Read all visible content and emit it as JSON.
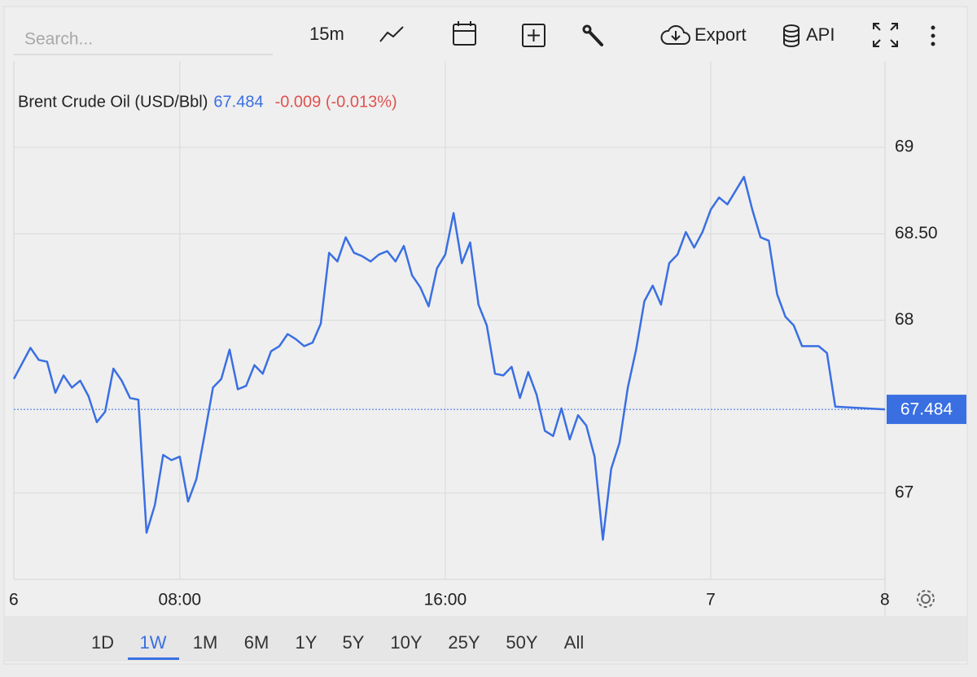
{
  "toolbar": {
    "search_placeholder": "Search...",
    "interval": "15m",
    "export": "Export",
    "api": "API"
  },
  "range_buttons": [
    "1D",
    "1W",
    "1M",
    "6M",
    "1Y",
    "5Y",
    "10Y",
    "25Y",
    "50Y",
    "All"
  ],
  "chart_data": {
    "type": "line",
    "title": "Brent Crude Oil (USD/Bbl)",
    "last_value": 67.484,
    "change": "-0.009 (-0.013%)",
    "x": [
      0,
      1,
      2,
      3,
      4,
      5,
      6,
      7,
      8,
      9,
      10,
      11,
      12,
      13,
      14,
      15,
      16,
      17,
      18,
      19,
      20,
      21,
      22,
      23,
      24,
      25,
      26,
      27,
      28,
      29,
      30,
      31,
      32,
      33,
      34,
      35,
      36,
      37,
      38,
      39,
      40,
      41,
      42,
      43,
      44,
      45,
      46,
      47,
      48,
      49,
      50,
      51,
      52,
      53,
      54,
      55,
      56,
      57,
      58,
      59,
      60,
      61,
      62,
      63,
      64,
      65,
      66,
      67,
      68,
      69,
      70,
      71,
      72,
      73,
      74,
      75,
      76,
      77,
      78,
      79,
      80,
      81,
      82,
      83,
      84,
      85,
      86,
      87,
      88,
      89,
      90,
      91,
      92,
      93,
      94,
      95,
      96,
      97,
      98,
      99,
      105
    ],
    "series": [
      {
        "name": "Brent Crude Oil (USD/Bbl)",
        "color": "#3a6fe2",
        "values": [
          67.66,
          67.75,
          67.84,
          67.77,
          67.76,
          67.58,
          67.68,
          67.61,
          67.65,
          67.56,
          67.41,
          67.47,
          67.72,
          67.65,
          67.55,
          67.54,
          66.77,
          66.93,
          67.22,
          67.19,
          67.21,
          66.95,
          67.08,
          67.34,
          67.61,
          67.66,
          67.83,
          67.6,
          67.62,
          67.74,
          67.69,
          67.82,
          67.85,
          67.92,
          67.89,
          67.85,
          67.87,
          67.98,
          68.39,
          68.34,
          68.48,
          68.39,
          68.37,
          68.34,
          68.38,
          68.4,
          68.34,
          68.43,
          68.26,
          68.19,
          68.08,
          68.3,
          68.38,
          68.62,
          68.33,
          68.45,
          68.09,
          67.97,
          67.69,
          67.68,
          67.73,
          67.55,
          67.7,
          67.57,
          67.36,
          67.33,
          67.49,
          67.31,
          67.45,
          67.39,
          67.21,
          66.73,
          67.14,
          67.29,
          67.61,
          67.83,
          68.11,
          68.2,
          68.09,
          68.33,
          68.38,
          68.51,
          68.42,
          68.51,
          68.64,
          68.71,
          68.67,
          68.75,
          68.83,
          68.64,
          68.48,
          68.46,
          68.15,
          68.02,
          67.97,
          67.85,
          67.85,
          67.85,
          67.81,
          67.5,
          67.484
        ]
      }
    ],
    "xlim": [
      0,
      105
    ],
    "xticks": [
      {
        "value": 0,
        "label": "6"
      },
      {
        "value": 20,
        "label": "08:00"
      },
      {
        "value": 52,
        "label": "16:00"
      },
      {
        "value": 84,
        "label": "7"
      },
      {
        "value": 105,
        "label": "8"
      }
    ],
    "ylim": [
      66.5,
      69.5
    ],
    "yticks": [
      67,
      68,
      {
        "value": 68.5,
        "label": "68.50"
      },
      69
    ],
    "grid": true
  }
}
